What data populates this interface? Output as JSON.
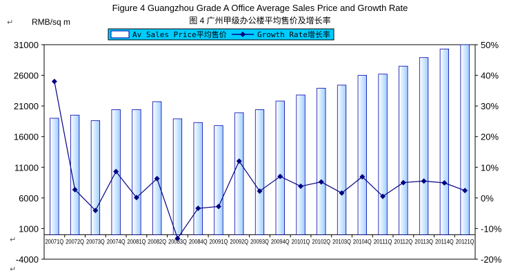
{
  "title_en": "Figure 4 Guangzhou Grade A Office Average Sales Price and Growth Rate",
  "title_cn": "图 4 广州甲级办公楼平均售价及增长率",
  "return_mark": "↵",
  "colors": {
    "bar_fill_light": "#ffffff",
    "bar_fill_dark": "#9fcfff",
    "bar_stroke": "#0000aa",
    "line": "#000080",
    "legend_bg": "#00ccff"
  },
  "chart_data": {
    "type": "bar",
    "title": "Figure 4 Guangzhou Grade A Office Average Sales Price and Growth Rate",
    "ylabel": "RMB/sq m",
    "ylim": [
      -4000,
      31000
    ],
    "y_ticks": [
      "31000",
      "26000",
      "21000",
      "16000",
      "11000",
      "6000",
      "1000",
      "-4000"
    ],
    "y_tick_values": [
      31000,
      26000,
      21000,
      16000,
      11000,
      6000,
      1000,
      -4000
    ],
    "y2lim": [
      -20,
      50
    ],
    "y2_ticks": [
      "50%",
      "40%",
      "30%",
      "20%",
      "10%",
      "0%",
      "-10%",
      "-20%"
    ],
    "y2_tick_values": [
      50,
      40,
      30,
      20,
      10,
      0,
      -10,
      -20
    ],
    "legend_position": "top",
    "categories": [
      "20071Q",
      "20072Q",
      "20073Q",
      "20074Q",
      "20081Q",
      "20082Q",
      "20083Q",
      "20084Q",
      "20091Q",
      "20092Q",
      "20093Q",
      "20094Q",
      "20101Q",
      "20102Q",
      "20103Q",
      "20104Q",
      "20111Q",
      "20112Q",
      "20113Q",
      "20114Q",
      "20121Q"
    ],
    "series": [
      {
        "name": "Av Sales Price平均售价",
        "type": "bar",
        "axis": "left",
        "values": [
          19000,
          19500,
          18600,
          20400,
          20400,
          21700,
          18900,
          18300,
          17800,
          19900,
          20400,
          21800,
          22800,
          23900,
          24400,
          26000,
          26200,
          27500,
          28900,
          30300,
          31000
        ]
      },
      {
        "name": "Growth Rate增长率",
        "type": "line",
        "axis": "right",
        "values": [
          38,
          2.7,
          -4.1,
          8.6,
          0.1,
          6.3,
          -13.2,
          -3.4,
          -2.8,
          12,
          2.2,
          7,
          3.8,
          5.2,
          1.6,
          6.9,
          0.5,
          5,
          5.5,
          4.9,
          2.4
        ]
      }
    ]
  }
}
